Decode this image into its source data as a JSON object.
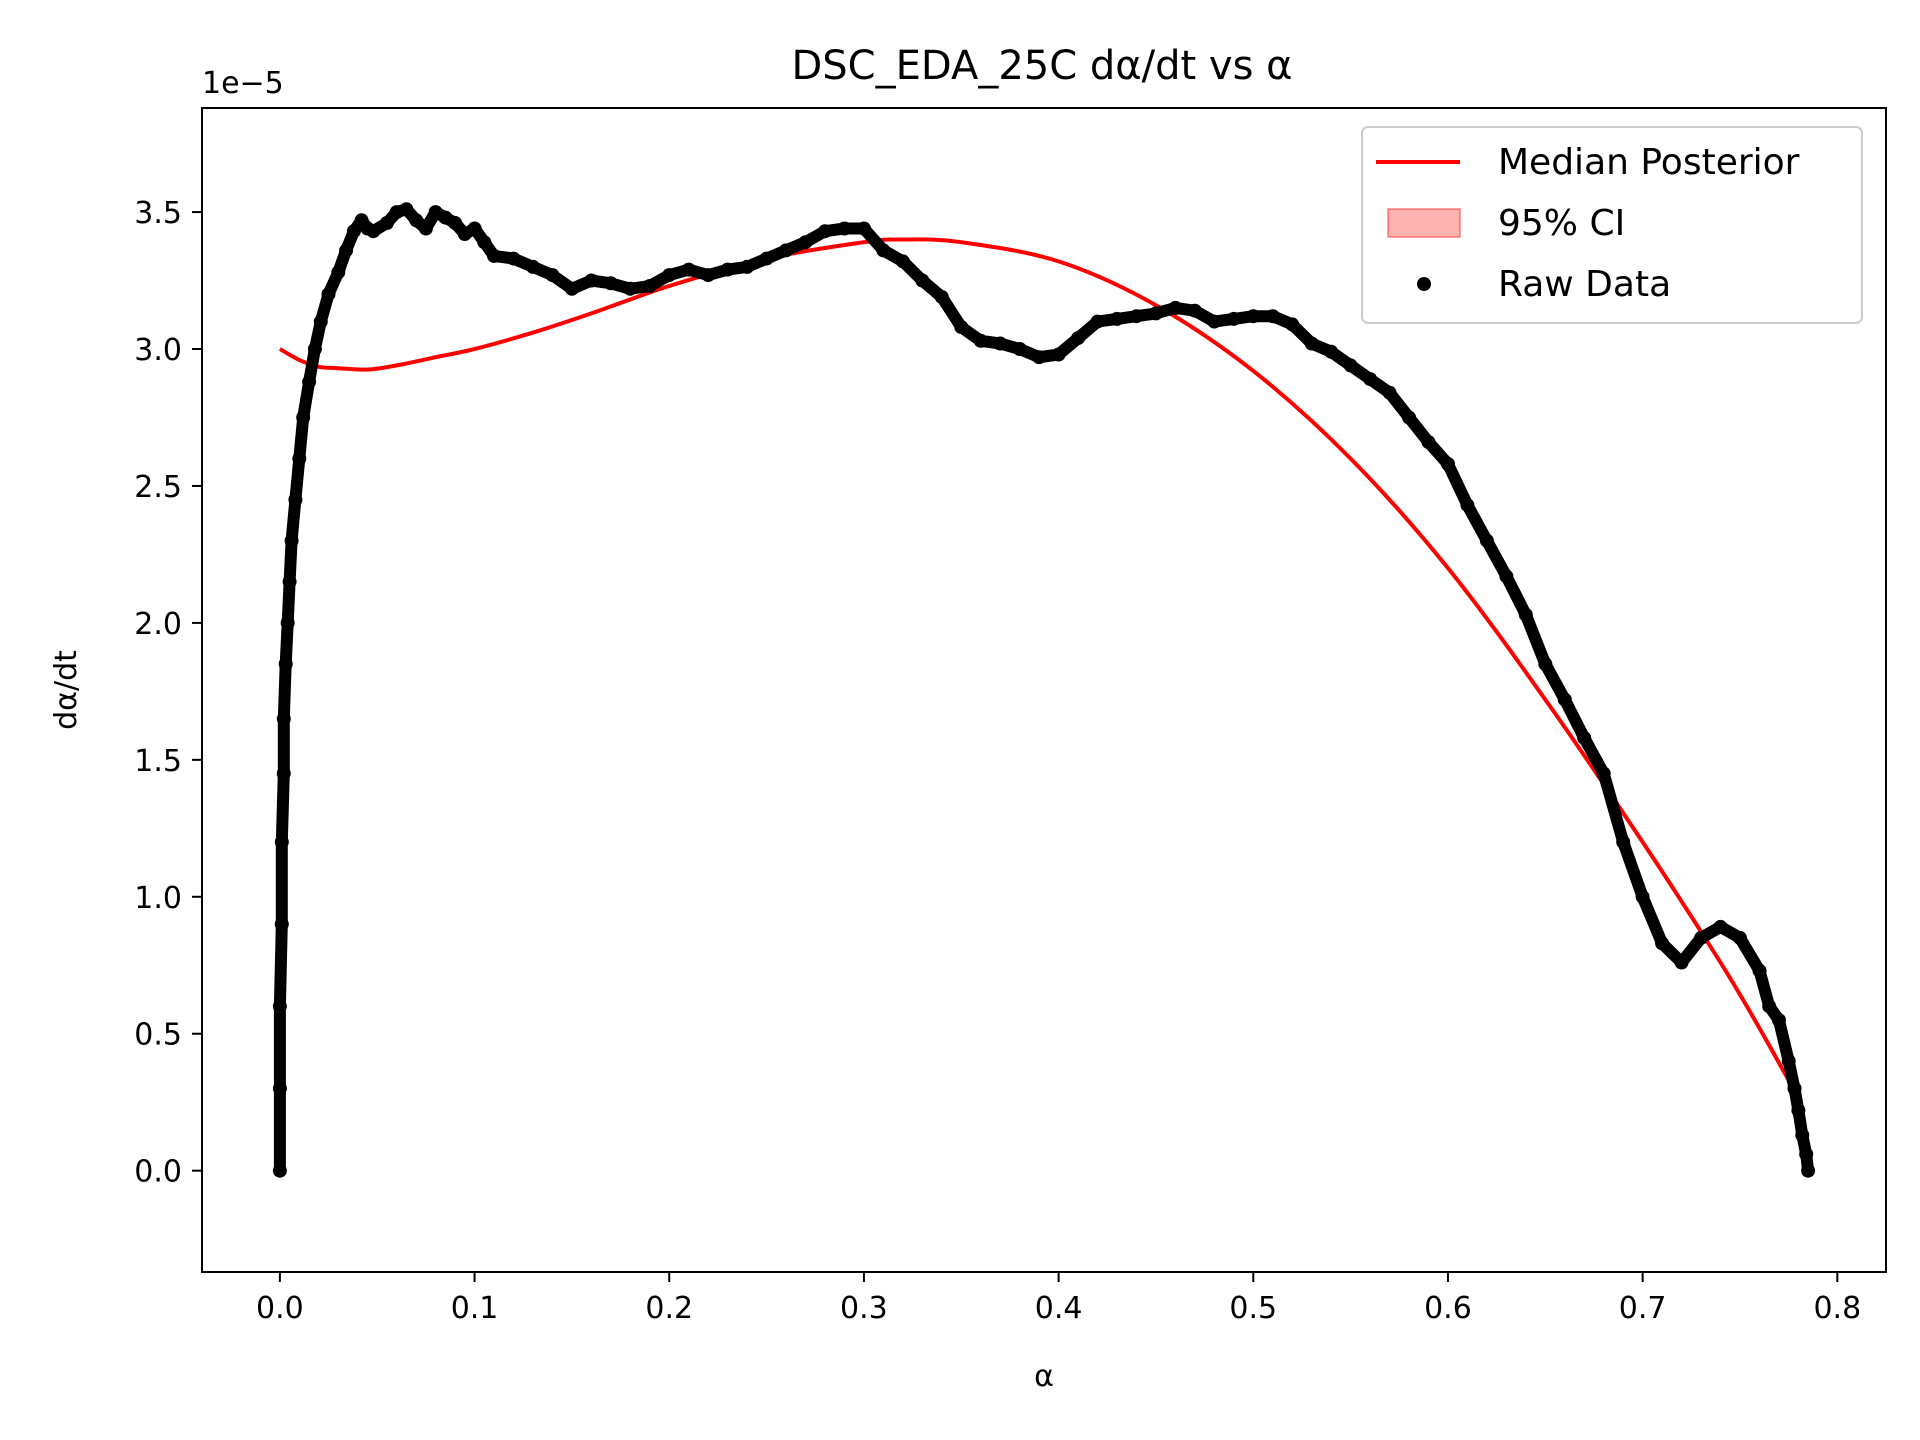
{
  "chart_data": {
    "type": "line",
    "title": "DSC_EDA_25C dα/dt vs α",
    "xlabel": "α",
    "ylabel": "dα/dt",
    "y_offset_label": "1e−5",
    "y_scale": 1e-05,
    "xlim": [
      -0.04,
      0.825
    ],
    "ylim": [
      -3.7e-06,
      3.88e-05
    ],
    "x_ticks": [
      0.0,
      0.1,
      0.2,
      0.3,
      0.4,
      0.5,
      0.6,
      0.7,
      0.8
    ],
    "x_tick_labels": [
      "0.0",
      "0.1",
      "0.2",
      "0.3",
      "0.4",
      "0.5",
      "0.6",
      "0.7",
      "0.8"
    ],
    "y_ticks": [
      0.0,
      5e-06,
      1e-05,
      1.5e-05,
      2e-05,
      2.5e-05,
      3e-05,
      3.5e-05
    ],
    "y_tick_labels": [
      "0.0",
      "0.5",
      "1.0",
      "1.5",
      "2.0",
      "2.5",
      "3.0",
      "3.5"
    ],
    "grid": false,
    "legend_position": "top-right",
    "legend": [
      {
        "label": "Median Posterior",
        "kind": "line",
        "color": "#ff0000"
      },
      {
        "label": "95% CI",
        "kind": "band",
        "color": "#ff0000"
      },
      {
        "label": "Raw Data",
        "kind": "marker",
        "color": "#000000"
      }
    ],
    "series": [
      {
        "name": "Median Posterior",
        "kind": "line",
        "color": "#ff0000",
        "x": [
          0.0,
          0.01,
          0.02,
          0.03,
          0.045,
          0.06,
          0.08,
          0.1,
          0.13,
          0.16,
          0.2,
          0.25,
          0.3,
          0.32,
          0.35,
          0.4,
          0.45,
          0.5,
          0.55,
          0.6,
          0.65,
          0.7,
          0.74,
          0.76,
          0.775
        ],
        "y": [
          3e-05,
          2.96e-05,
          2.935e-05,
          2.93e-05,
          2.925e-05,
          2.94e-05,
          2.97e-05,
          3e-05,
          3.06e-05,
          3.13e-05,
          3.23e-05,
          3.33e-05,
          3.39e-05,
          3.4e-05,
          3.39e-05,
          3.32e-05,
          3.16e-05,
          2.92e-05,
          2.6e-05,
          2.2e-05,
          1.72e-05,
          1.2e-05,
          7.6e-06,
          5.2e-06,
          3.3e-06
        ]
      },
      {
        "name": "Raw Data",
        "kind": "scatter",
        "color": "#000000",
        "x": [
          0.0,
          0.0,
          0.0,
          0.001,
          0.001,
          0.002,
          0.002,
          0.003,
          0.004,
          0.005,
          0.006,
          0.008,
          0.01,
          0.012,
          0.015,
          0.018,
          0.021,
          0.025,
          0.03,
          0.034,
          0.038,
          0.042,
          0.045,
          0.048,
          0.055,
          0.06,
          0.065,
          0.07,
          0.075,
          0.08,
          0.085,
          0.09,
          0.095,
          0.1,
          0.105,
          0.11,
          0.12,
          0.13,
          0.14,
          0.15,
          0.16,
          0.17,
          0.18,
          0.19,
          0.2,
          0.21,
          0.22,
          0.23,
          0.24,
          0.25,
          0.26,
          0.27,
          0.28,
          0.29,
          0.3,
          0.31,
          0.32,
          0.33,
          0.34,
          0.35,
          0.36,
          0.37,
          0.38,
          0.39,
          0.4,
          0.41,
          0.42,
          0.43,
          0.44,
          0.45,
          0.46,
          0.47,
          0.48,
          0.49,
          0.5,
          0.51,
          0.52,
          0.53,
          0.54,
          0.55,
          0.56,
          0.57,
          0.58,
          0.59,
          0.6,
          0.61,
          0.62,
          0.63,
          0.64,
          0.65,
          0.66,
          0.67,
          0.68,
          0.69,
          0.7,
          0.71,
          0.72,
          0.73,
          0.74,
          0.75,
          0.76,
          0.765,
          0.77,
          0.775,
          0.778,
          0.78,
          0.782,
          0.784,
          0.785
        ],
        "y": [
          0.0,
          3e-06,
          6e-06,
          9e-06,
          1.2e-05,
          1.45e-05,
          1.65e-05,
          1.85e-05,
          2e-05,
          2.15e-05,
          2.3e-05,
          2.45e-05,
          2.6e-05,
          2.75e-05,
          2.88e-05,
          3e-05,
          3.1e-05,
          3.2e-05,
          3.28e-05,
          3.36e-05,
          3.43e-05,
          3.47e-05,
          3.44e-05,
          3.43e-05,
          3.46e-05,
          3.5e-05,
          3.51e-05,
          3.47e-05,
          3.44e-05,
          3.5e-05,
          3.48e-05,
          3.46e-05,
          3.42e-05,
          3.44e-05,
          3.39e-05,
          3.34e-05,
          3.33e-05,
          3.3e-05,
          3.27e-05,
          3.22e-05,
          3.25e-05,
          3.24e-05,
          3.22e-05,
          3.23e-05,
          3.27e-05,
          3.29e-05,
          3.27e-05,
          3.29e-05,
          3.3e-05,
          3.33e-05,
          3.36e-05,
          3.39e-05,
          3.43e-05,
          3.44e-05,
          3.44e-05,
          3.36e-05,
          3.32e-05,
          3.25e-05,
          3.19e-05,
          3.08e-05,
          3.03e-05,
          3.02e-05,
          3e-05,
          2.97e-05,
          2.98e-05,
          3.04e-05,
          3.1e-05,
          3.11e-05,
          3.12e-05,
          3.13e-05,
          3.15e-05,
          3.14e-05,
          3.1e-05,
          3.11e-05,
          3.12e-05,
          3.12e-05,
          3.09e-05,
          3.02e-05,
          2.99e-05,
          2.94e-05,
          2.89e-05,
          2.84e-05,
          2.75e-05,
          2.66e-05,
          2.58e-05,
          2.43e-05,
          2.3e-05,
          2.17e-05,
          2.03e-05,
          1.85e-05,
          1.72e-05,
          1.58e-05,
          1.45e-05,
          1.2e-05,
          1e-05,
          8.3e-06,
          7.6e-06,
          8.5e-06,
          8.9e-06,
          8.5e-06,
          7.3e-06,
          6e-06,
          5.5e-06,
          4e-06,
          3e-06,
          2.2e-06,
          1.3e-06,
          6e-07,
          0.0
        ]
      }
    ]
  }
}
